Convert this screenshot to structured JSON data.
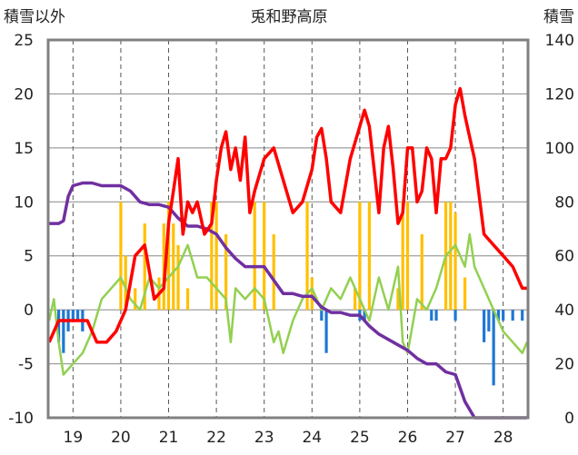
{
  "chart_data": {
    "type": "line",
    "title": "兎和野高原",
    "ylabel_left": "積雪以外",
    "ylabel_right": "積雪",
    "ylim_left": [
      -10,
      25
    ],
    "ylim_right": [
      0,
      140
    ],
    "left_ticks": [
      "25",
      "20",
      "15",
      "10",
      "5",
      "0",
      "-5",
      "-10"
    ],
    "right_ticks": [
      "140",
      "120",
      "100",
      "80",
      "60",
      "40",
      "20",
      "0"
    ],
    "x_categories": [
      "19",
      "20",
      "21",
      "22",
      "23",
      "24",
      "25",
      "26",
      "27",
      "28"
    ],
    "grid": true,
    "series": [
      {
        "key": "temp",
        "color": "#ff0000",
        "axis": "left",
        "x": [
          18.5,
          18.7,
          18.9,
          19.1,
          19.3,
          19.5,
          19.7,
          19.9,
          20.1,
          20.3,
          20.5,
          20.7,
          20.9,
          21.0,
          21.1,
          21.2,
          21.3,
          21.4,
          21.5,
          21.6,
          21.75,
          21.9,
          22.0,
          22.1,
          22.2,
          22.3,
          22.4,
          22.5,
          22.6,
          22.7,
          22.8,
          23.0,
          23.2,
          23.4,
          23.6,
          23.8,
          24.0,
          24.1,
          24.2,
          24.3,
          24.4,
          24.6,
          24.8,
          25.0,
          25.1,
          25.2,
          25.3,
          25.4,
          25.5,
          25.6,
          25.7,
          25.8,
          25.9,
          26.0,
          26.1,
          26.2,
          26.3,
          26.4,
          26.5,
          26.6,
          26.7,
          26.8,
          26.9,
          27.0,
          27.1,
          27.2,
          27.3,
          27.4,
          27.6,
          27.8,
          28.0,
          28.2,
          28.4,
          28.5
        ],
        "values": [
          -3,
          -1,
          -1,
          -1,
          -1,
          -3,
          -3,
          -2,
          0,
          5,
          6,
          1,
          2,
          8,
          11,
          14,
          7,
          10,
          9,
          10,
          7,
          8,
          12,
          15,
          16.5,
          13,
          15,
          12,
          16,
          9,
          11,
          14,
          15,
          12,
          9,
          10,
          13,
          16,
          16.8,
          14,
          10,
          9,
          14,
          17,
          18.5,
          17,
          13,
          9,
          15,
          17,
          13,
          8,
          9,
          15,
          15,
          10,
          11,
          15,
          14,
          9,
          14,
          14,
          15,
          19,
          20.5,
          18,
          16,
          14,
          7,
          6,
          5,
          4,
          2,
          2
        ]
      },
      {
        "key": "snow",
        "color": "#7030a0",
        "axis": "right",
        "x": [
          18.5,
          18.7,
          18.8,
          18.9,
          19.0,
          19.2,
          19.4,
          19.6,
          19.8,
          20.0,
          20.2,
          20.4,
          20.6,
          20.8,
          21.0,
          21.2,
          21.4,
          21.6,
          21.8,
          22.0,
          22.2,
          22.4,
          22.6,
          22.8,
          23.0,
          23.2,
          23.4,
          23.6,
          23.8,
          24.0,
          24.2,
          24.4,
          24.6,
          24.8,
          25.0,
          25.2,
          25.4,
          25.6,
          25.8,
          26.0,
          26.2,
          26.4,
          26.6,
          26.8,
          27.0,
          27.2,
          27.4,
          27.6,
          27.8,
          28.0,
          28.2,
          28.5
        ],
        "values": [
          72,
          72,
          73,
          82,
          86,
          87,
          87,
          86,
          86,
          86,
          84,
          80,
          79,
          79,
          78,
          74,
          71,
          71,
          70,
          68,
          63,
          59,
          56,
          56,
          56,
          51,
          46,
          46,
          45,
          45,
          41,
          39,
          39,
          38,
          38,
          34,
          31,
          29,
          27,
          25,
          22,
          20,
          20,
          17,
          16,
          6,
          0,
          0,
          0,
          0,
          0,
          0
        ]
      },
      {
        "key": "humid",
        "color": "#92d050",
        "axis": "left",
        "x": [
          18.5,
          18.6,
          18.7,
          18.8,
          19.0,
          19.2,
          19.4,
          19.6,
          19.8,
          20.0,
          20.2,
          20.4,
          20.6,
          20.8,
          21.0,
          21.2,
          21.4,
          21.6,
          21.8,
          22.0,
          22.2,
          22.3,
          22.4,
          22.6,
          22.8,
          23.0,
          23.1,
          23.2,
          23.3,
          23.4,
          23.6,
          23.8,
          24.0,
          24.2,
          24.4,
          24.6,
          24.8,
          25.0,
          25.2,
          25.4,
          25.6,
          25.8,
          25.9,
          26.0,
          26.2,
          26.4,
          26.6,
          26.8,
          27.0,
          27.2,
          27.3,
          27.4,
          27.6,
          27.8,
          28.0,
          28.2,
          28.4,
          28.5
        ],
        "values": [
          -1,
          1,
          -3,
          -6,
          -5,
          -4,
          -2,
          1,
          2,
          3,
          1,
          0,
          3,
          2,
          3,
          4,
          6,
          3,
          3,
          2,
          1,
          -3,
          2,
          1,
          2,
          1,
          -1,
          -3,
          -2,
          -4,
          -1,
          1,
          2,
          0,
          2,
          1,
          3,
          1,
          -1,
          3,
          0,
          4,
          -3,
          -4,
          1,
          0,
          2,
          5,
          6,
          4,
          7,
          4,
          2,
          0,
          -2,
          -3,
          -4,
          -3
        ]
      }
    ],
    "bars_left": [
      {
        "key": "precip",
        "color": "#ffc000",
        "units": "left",
        "x": [
          20.0,
          20.1,
          20.3,
          20.5,
          20.8,
          20.9,
          21.0,
          21.1,
          21.2,
          21.4,
          21.9,
          22.0,
          22.2,
          22.8,
          23.0,
          23.2,
          23.9,
          24.0,
          24.9,
          25.0,
          25.2,
          25.8,
          25.9,
          26.0,
          26.3,
          26.8,
          26.9,
          27.0,
          27.2
        ],
        "values": [
          10,
          5,
          2,
          8,
          3,
          8,
          10,
          8,
          6,
          2,
          10,
          10,
          7,
          10,
          10,
          7,
          10,
          3,
          2,
          10,
          10,
          2,
          10,
          10,
          7,
          10,
          10,
          9,
          3
        ]
      },
      {
        "key": "other",
        "color": "#1f77d4",
        "units": "left",
        "x": [
          18.7,
          18.8,
          18.9,
          19.0,
          19.1,
          19.2,
          24.2,
          24.3,
          25.0,
          25.1,
          26.5,
          26.6,
          27.0,
          27.6,
          27.7,
          27.8,
          27.9,
          28.0,
          28.2,
          28.4
        ],
        "values": [
          -3,
          -4,
          -2,
          -1,
          -1,
          -2,
          -1,
          -4,
          -1,
          -1,
          -1,
          -1,
          -1,
          -3,
          -2,
          -7,
          -1,
          -1,
          -1,
          -1
        ]
      }
    ]
  }
}
